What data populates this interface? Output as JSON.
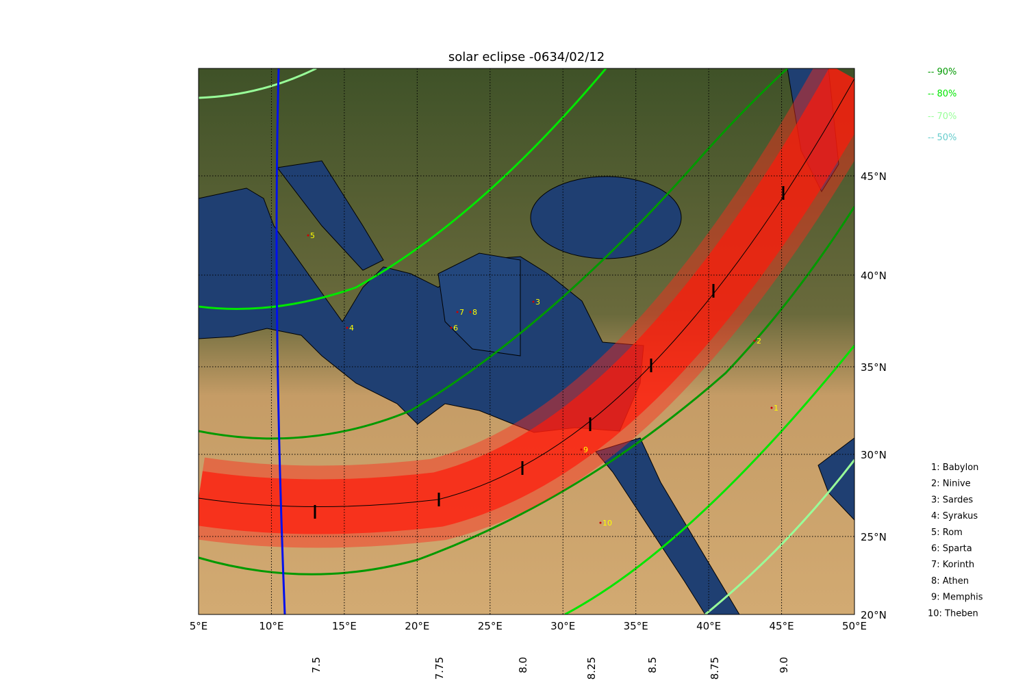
{
  "title": "solar eclipse -0634/02/12",
  "magnitude_legend": [
    {
      "label": "-- 90%",
      "color": "#009900"
    },
    {
      "label": "-- 80%",
      "color": "#00e600"
    },
    {
      "label": "-- 70%",
      "color": "#99ff99"
    },
    {
      "label": "-- 50%",
      "color": "#66cccc"
    }
  ],
  "longitude_ticks": [
    "5°E",
    "10°E",
    "15°E",
    "20°E",
    "25°E",
    "30°E",
    "35°E",
    "40°E",
    "45°E",
    "50°E"
  ],
  "latitude_ticks": [
    "45°N",
    "40°N",
    "35°N",
    "30°N",
    "25°N",
    "20°N"
  ],
  "time_ticks": [
    "7.5",
    "7.75",
    "8.0",
    "8.25",
    "8.5",
    "8.75",
    "9.0"
  ],
  "city_markers": [
    "1",
    "2",
    "3",
    "4",
    "5",
    "6",
    "7",
    "8",
    "9",
    "10"
  ],
  "city_list": [
    "1: Babylon",
    "2: Ninive",
    "3: Sardes",
    "4: Syrakus",
    "5: Rom",
    "6: Sparta",
    "7: Korinth",
    "8: Athen",
    "9: Memphis",
    "10: Theben"
  ]
}
